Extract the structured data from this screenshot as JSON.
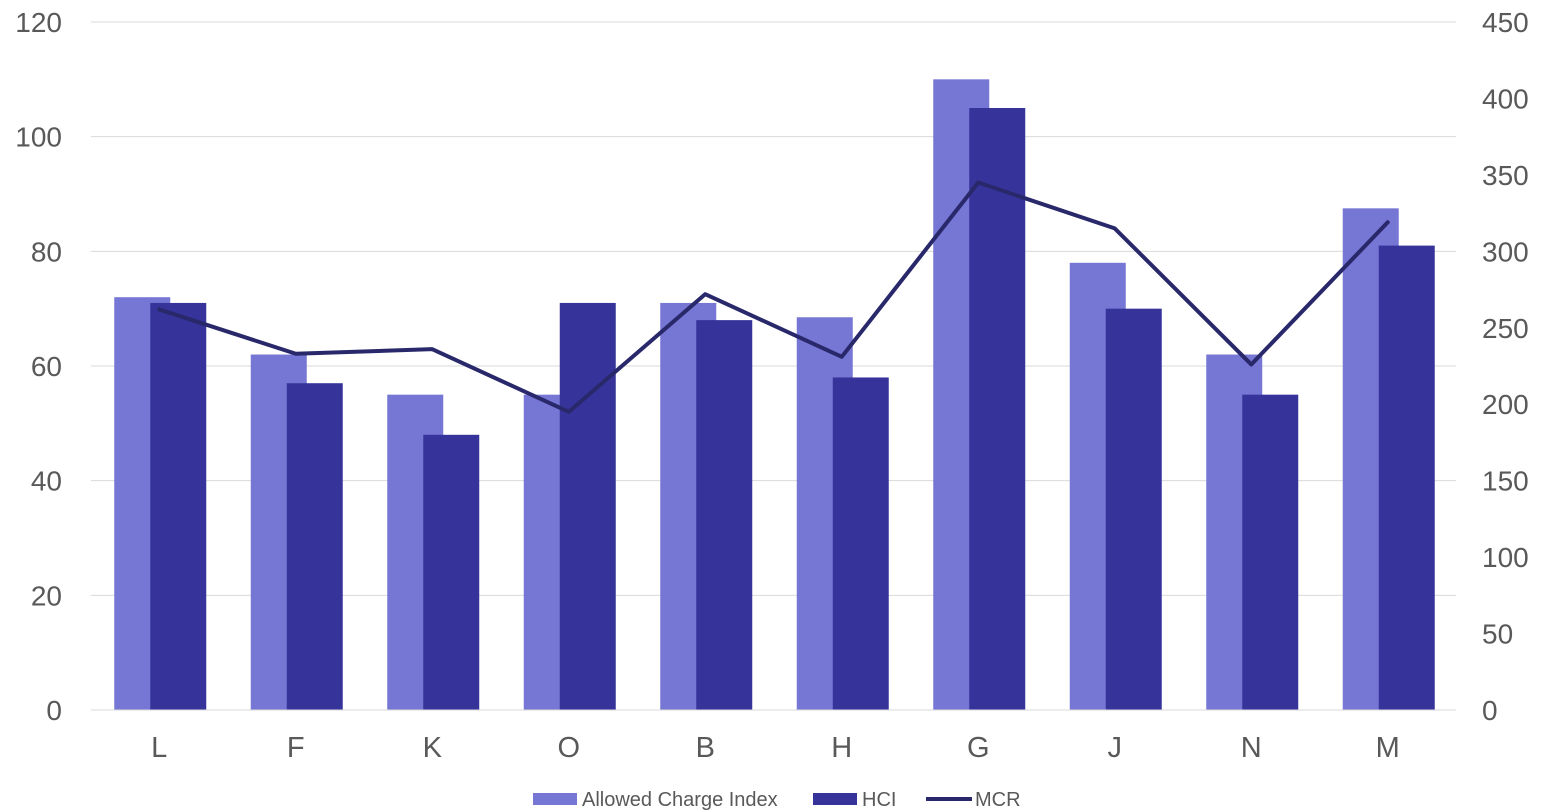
{
  "chart_data": {
    "type": "bar",
    "title": "",
    "xlabel": "",
    "ylabel": "",
    "categories": [
      "L",
      "F",
      "K",
      "O",
      "B",
      "H",
      "G",
      "J",
      "N",
      "M"
    ],
    "ylim": [
      0,
      120
    ],
    "y_ticks": [
      0,
      20,
      40,
      60,
      80,
      100,
      120
    ],
    "y2lim": [
      0,
      450
    ],
    "y2_ticks": [
      0,
      50,
      100,
      150,
      200,
      250,
      300,
      350,
      400,
      450
    ],
    "grid": true,
    "legend_position": "bottom",
    "series": [
      {
        "name": "Allowed Charge Index",
        "type": "bar",
        "axis": "left",
        "color": "#7676d4",
        "values": [
          72,
          62,
          55,
          55,
          71,
          68.5,
          110,
          78,
          62,
          87.5
        ]
      },
      {
        "name": "HCI",
        "type": "bar",
        "axis": "left",
        "color": "#36349a",
        "values": [
          71,
          57,
          48,
          71,
          68,
          58,
          105,
          70,
          55,
          81
        ]
      },
      {
        "name": "MCR",
        "type": "line",
        "axis": "right",
        "color": "#28286b",
        "values": [
          262,
          233,
          236,
          195,
          272,
          231,
          345,
          315,
          226,
          319
        ]
      }
    ]
  }
}
